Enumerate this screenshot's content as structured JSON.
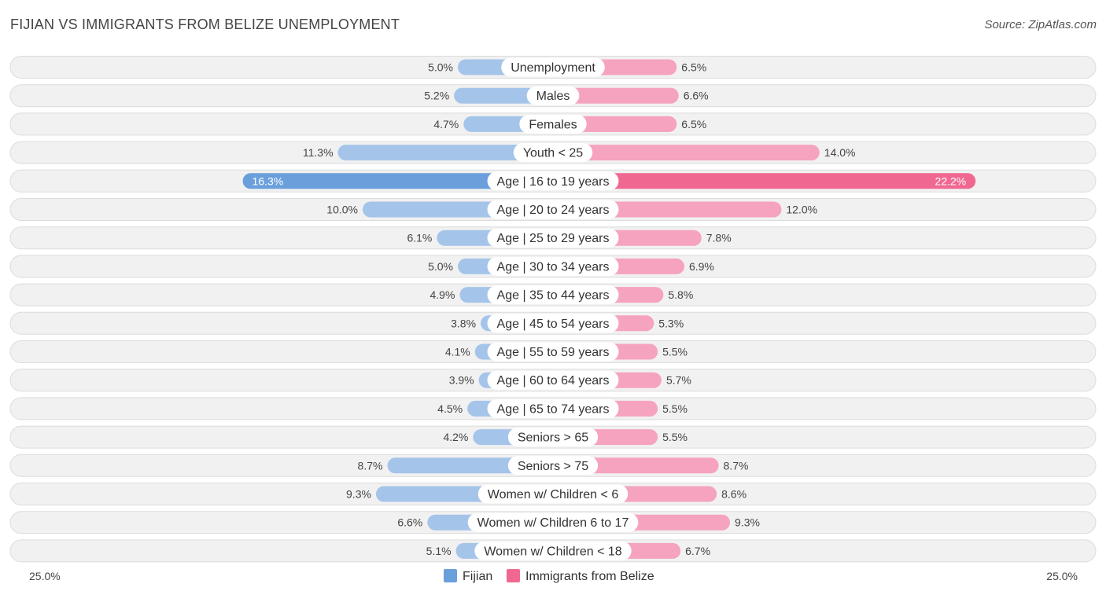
{
  "title": "FIJIAN VS IMMIGRANTS FROM BELIZE UNEMPLOYMENT",
  "source": "Source: ZipAtlas.com",
  "colors": {
    "left": "#a5c4e9",
    "left_strong": "#6a9fdc",
    "right": "#f5a3bf",
    "right_strong": "#f06892",
    "legend_left": "#6a9fdc",
    "legend_right": "#f06892"
  },
  "chart_data": {
    "type": "bar",
    "orientation": "horizontal-diverging",
    "categories": [
      "Unemployment",
      "Males",
      "Females",
      "Youth < 25",
      "Age | 16 to 19 years",
      "Age | 20 to 24 years",
      "Age | 25 to 29 years",
      "Age | 30 to 34 years",
      "Age | 35 to 44 years",
      "Age | 45 to 54 years",
      "Age | 55 to 59 years",
      "Age | 60 to 64 years",
      "Age | 65 to 74 years",
      "Seniors > 65",
      "Seniors > 75",
      "Women w/ Children < 6",
      "Women w/ Children 6 to 17",
      "Women w/ Children < 18"
    ],
    "series": [
      {
        "name": "Fijian",
        "values": [
          5.0,
          5.2,
          4.7,
          11.3,
          16.3,
          10.0,
          6.1,
          5.0,
          4.9,
          3.8,
          4.1,
          3.9,
          4.5,
          4.2,
          8.7,
          9.3,
          6.6,
          5.1
        ],
        "labels": [
          "5.0%",
          "5.2%",
          "4.7%",
          "11.3%",
          "16.3%",
          "10.0%",
          "6.1%",
          "5.0%",
          "4.9%",
          "3.8%",
          "4.1%",
          "3.9%",
          "4.5%",
          "4.2%",
          "8.7%",
          "9.3%",
          "6.6%",
          "5.1%"
        ]
      },
      {
        "name": "Immigrants from Belize",
        "values": [
          6.5,
          6.6,
          6.5,
          14.0,
          22.2,
          12.0,
          7.8,
          6.9,
          5.8,
          5.3,
          5.5,
          5.7,
          5.5,
          5.5,
          8.7,
          8.6,
          9.3,
          6.7
        ],
        "labels": [
          "6.5%",
          "6.6%",
          "6.5%",
          "14.0%",
          "22.2%",
          "12.0%",
          "7.8%",
          "6.9%",
          "5.8%",
          "5.3%",
          "5.5%",
          "5.7%",
          "5.5%",
          "5.5%",
          "8.7%",
          "8.6%",
          "9.3%",
          "6.7%"
        ]
      }
    ],
    "highlight_index": 4,
    "xlim": [
      0,
      25
    ],
    "axis_min_label": "25.0%",
    "axis_max_label": "25.0%",
    "legend": "bottom-center"
  }
}
